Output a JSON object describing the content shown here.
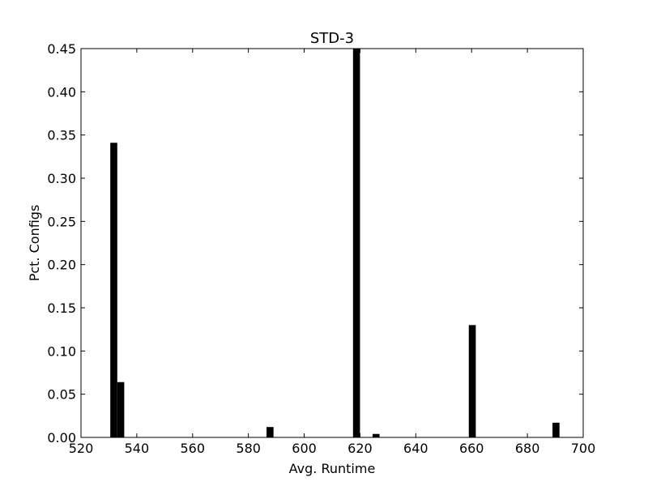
{
  "chart_data": {
    "type": "bar",
    "title": "STD-3",
    "xlabel": "Avg. Runtime",
    "ylabel": "Pct. Configs",
    "xlim": [
      520,
      700
    ],
    "ylim": [
      0,
      0.45
    ],
    "x_ticks": [
      "520",
      "540",
      "560",
      "580",
      "600",
      "620",
      "640",
      "660",
      "680",
      "700"
    ],
    "y_ticks": [
      "0.00",
      "0.05",
      "0.10",
      "0.15",
      "0.20",
      "0.25",
      "0.30",
      "0.35",
      "0.40",
      "0.45"
    ],
    "bin_width": 2.5,
    "bars": [
      {
        "x": 530.5,
        "value": 0.341
      },
      {
        "x": 533.0,
        "value": 0.064
      },
      {
        "x": 586.5,
        "value": 0.012
      },
      {
        "x": 617.5,
        "value": 0.45
      },
      {
        "x": 624.5,
        "value": 0.004
      },
      {
        "x": 659.0,
        "value": 0.13
      },
      {
        "x": 689.0,
        "value": 0.017
      }
    ],
    "bar_color": "#000000",
    "grid": false
  }
}
